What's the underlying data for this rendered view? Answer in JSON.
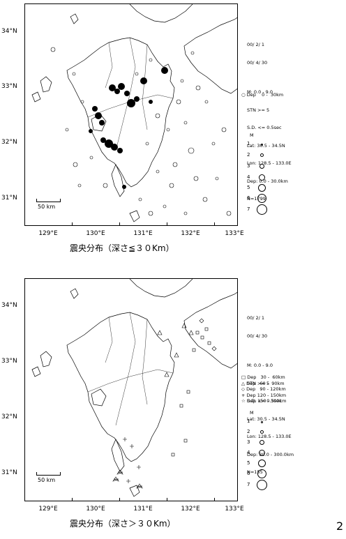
{
  "top_panel": {
    "latitudes": [
      "34°N",
      "33°N",
      "32°N",
      "31°N"
    ],
    "longitudes": [
      "129°E",
      "130°E",
      "131°E",
      "132°E",
      "133°E"
    ],
    "info_lines": [
      "00/ 2/ 1",
      "00/ 4/ 30",
      "",
      "M: 0.0 - 9.0",
      "STN >= 5",
      "S.D. <= 0.5sec",
      "Lat: 30.5 - 34.5N",
      "Lon: 128.5 - 133.0E",
      "Dep: 0.0 - 30.0km",
      "N=1799"
    ],
    "depth_legend": [
      "Dep    0 -  30km"
    ],
    "magnitude_title": "M",
    "magnitudes": [
      "1",
      "2",
      "3",
      "4",
      "5",
      "6",
      "7"
    ],
    "scale_label": "50 km",
    "caption": "震央分布（深さ≦３０Km）"
  },
  "bottom_panel": {
    "latitudes": [
      "34°N",
      "33°N",
      "32°N",
      "31°N"
    ],
    "longitudes": [
      "129°E",
      "130°E",
      "131°E",
      "132°E",
      "133°E"
    ],
    "info_lines": [
      "00/ 2/ 1",
      "00/ 4/ 30",
      "",
      "M: 0.0 - 9.0",
      "STN >= 5",
      "S.D. <= 0.5sec",
      "Lat: 30.5 - 34.5N",
      "Lon: 128.5 - 133.0E",
      "Dep: 30.0 - 300.0km",
      "N=155"
    ],
    "depth_legend": [
      "Dep   30 -  60km",
      "Dep   60 -  90km",
      "Dep   90 - 120km",
      "Dep 120 - 150km",
      "Dep 150 - 300km"
    ],
    "magnitude_title": "M",
    "magnitudes": [
      "1",
      "2",
      "3",
      "4",
      "5",
      "6",
      "7"
    ],
    "scale_label": "50 km",
    "caption": "震央分布（深さ＞３０Km）"
  },
  "page_number": "2",
  "colors": {
    "ink": "#000000",
    "background": "#ffffff"
  }
}
